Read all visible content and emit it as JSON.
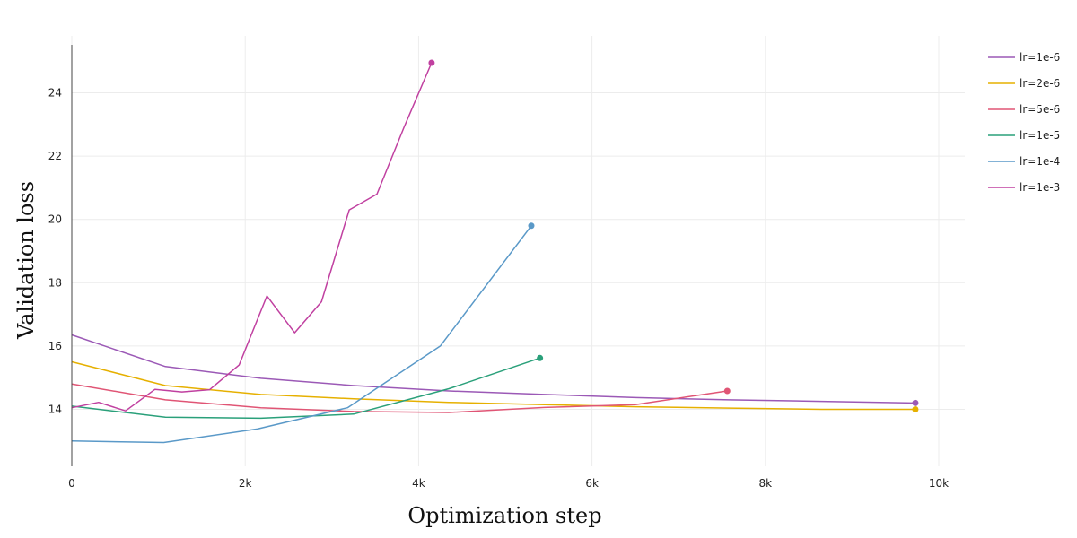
{
  "chart_data": {
    "type": "line",
    "title": "",
    "xlabel": "Optimization step",
    "ylabel": "Validation loss",
    "xlim": [
      0,
      10300
    ],
    "ylim": [
      12.2,
      25.8
    ],
    "xticks": [
      0,
      2000,
      4000,
      6000,
      8000,
      10000
    ],
    "xtick_labels": [
      "0",
      "2k",
      "4k",
      "6k",
      "8k",
      "10k"
    ],
    "yticks": [
      14,
      16,
      18,
      20,
      22,
      24
    ],
    "ytick_labels": [
      "14",
      "16",
      "18",
      "20",
      "22",
      "24"
    ],
    "grid": true,
    "legend_position": "top-right",
    "end_markers": true,
    "series": [
      {
        "name": "lr=1e-6",
        "color": "#9b59b6",
        "x": [
          0,
          1080,
          2180,
          3250,
          4350,
          5450,
          6500,
          7580,
          8650,
          9730
        ],
        "y": [
          16.35,
          15.35,
          14.98,
          14.75,
          14.58,
          14.47,
          14.37,
          14.3,
          14.25,
          14.2
        ]
      },
      {
        "name": "lr=2e-6",
        "color": "#e6b000",
        "x": [
          0,
          1080,
          2180,
          3250,
          4350,
          5450,
          6500,
          7580,
          8650,
          9730
        ],
        "y": [
          15.5,
          14.75,
          14.47,
          14.33,
          14.22,
          14.15,
          14.08,
          14.04,
          14.0,
          14.0
        ]
      },
      {
        "name": "lr=5e-6",
        "color": "#e05575",
        "x": [
          0,
          1080,
          2180,
          3250,
          4350,
          5450,
          6500,
          7560
        ],
        "y": [
          14.8,
          14.3,
          14.05,
          13.93,
          13.9,
          14.06,
          14.15,
          14.58
        ]
      },
      {
        "name": "lr=1e-5",
        "color": "#2aa07a",
        "x": [
          0,
          1080,
          2180,
          3250,
          4350,
          5400
        ],
        "y": [
          14.1,
          13.75,
          13.72,
          13.85,
          14.65,
          15.62
        ]
      },
      {
        "name": "lr=1e-4",
        "color": "#5a99c8",
        "x": [
          0,
          1060,
          2140,
          3180,
          4250,
          5300
        ],
        "y": [
          13.0,
          12.95,
          13.38,
          14.05,
          16.0,
          19.8
        ]
      },
      {
        "name": "lr=1e-3",
        "color": "#c040a0",
        "x": [
          0,
          310,
          620,
          960,
          1270,
          1590,
          1930,
          2250,
          2570,
          2880,
          3200,
          3520,
          3830,
          4150
        ],
        "y": [
          14.05,
          14.22,
          13.95,
          14.63,
          14.55,
          14.62,
          15.4,
          17.58,
          16.42,
          17.4,
          20.3,
          20.8,
          22.9,
          24.95
        ]
      }
    ]
  }
}
